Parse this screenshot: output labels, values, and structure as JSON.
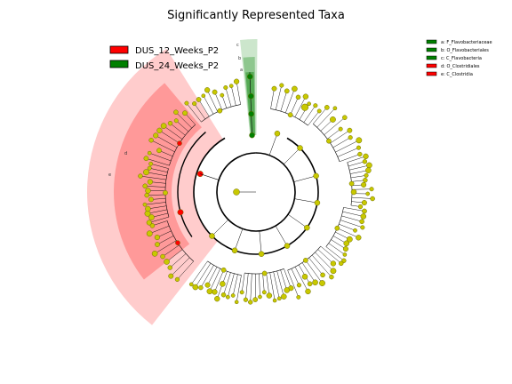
{
  "title": "Significantly Represented Taxa",
  "colors": {
    "group_12": "#ff0000",
    "group_24": "#008000",
    "node_default": "#c8c800",
    "node_stroke": "#6b6b00",
    "red_highlight": "#ff8080",
    "green_highlight": "#4caf50"
  },
  "legend": [
    {
      "label": "DUS_12_Weeks_P2",
      "color": "#ff0000"
    },
    {
      "label": "DUS_24_Weeks_P2",
      "color": "#008000"
    }
  ],
  "clade_legend": [
    {
      "key": "a",
      "label": "a: F_Flavobacteriaceae",
      "color": "#008000"
    },
    {
      "key": "b",
      "label": "b: O_Flavobacteriales",
      "color": "#008000"
    },
    {
      "key": "c",
      "label": "c: C_Flavobacteria",
      "color": "#008000"
    },
    {
      "key": "d",
      "label": "d: O_Clostridiales",
      "color": "#ff0000"
    },
    {
      "key": "e",
      "label": "e: C_Clostridia",
      "color": "#ff0000"
    }
  ],
  "clade_letters": {
    "a": "a",
    "b": "b",
    "c": "c",
    "d": "d",
    "e": "e"
  }
}
